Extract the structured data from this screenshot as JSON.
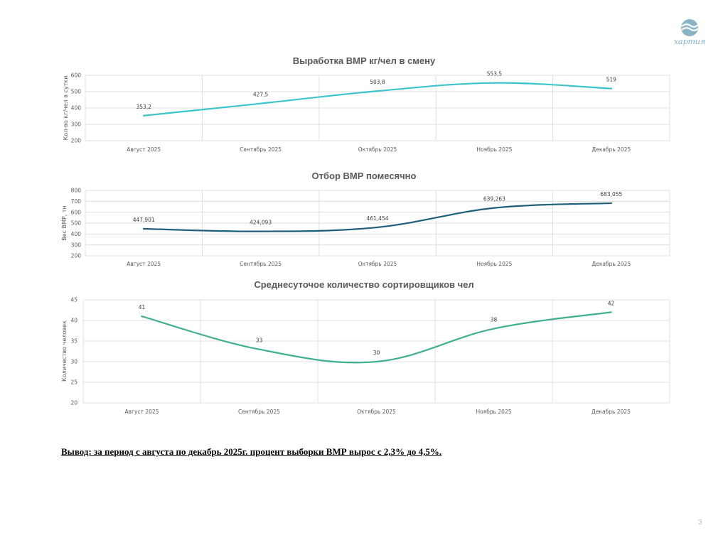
{
  "logo": {
    "name": "hartiya-logo",
    "text": "хартия",
    "color": "#8ab4c6"
  },
  "chart_data": [
    {
      "type": "line",
      "title": "Выработка ВМР кг/чел в смену",
      "ylabel": "Кол-во кг/чел в сутки",
      "xlabel": "",
      "categories": [
        "Август 2025",
        "Сентябрь 2025",
        "Октябрь 2025",
        "Ноябрь 2025",
        "Декабрь 2025"
      ],
      "series": [
        {
          "values": [
            353.2,
            427.5,
            503.8,
            553.5,
            519
          ],
          "labels": [
            "353,2",
            "427,5",
            "503,8",
            "553,5",
            "519"
          ],
          "color": "#3cc4cc"
        }
      ],
      "ylim": [
        200,
        600
      ],
      "yticks": [
        200,
        300,
        400,
        500,
        600
      ],
      "grid": true,
      "legend": "none"
    },
    {
      "type": "line",
      "title": "Отбор ВМР помесячно",
      "ylabel": "Вес ВМР, тн",
      "xlabel": "",
      "categories": [
        "Август 2025",
        "Сентябрь 2025",
        "Октябрь 2025",
        "Ноябрь 2025",
        "Декабрь 2025"
      ],
      "series": [
        {
          "values": [
            447.901,
            424.093,
            461.454,
            639.263,
            683.055
          ],
          "labels": [
            "447,901",
            "424,093",
            "461,454",
            "639,263",
            "683,055"
          ],
          "color": "#1d5f7a"
        }
      ],
      "ylim": [
        200,
        800
      ],
      "yticks": [
        200,
        300,
        400,
        500,
        600,
        700,
        800
      ],
      "grid": true,
      "legend": "none"
    },
    {
      "type": "line",
      "title": "Среднесуточое количество сортировщиков чел",
      "ylabel": "Количество человек",
      "xlabel": "",
      "categories": [
        "Август 2025",
        "Сентябрь 2025",
        "Октябрь 2025",
        "Ноябрь 2025",
        "Декабрь 2025"
      ],
      "series": [
        {
          "values": [
            41,
            33,
            30,
            38,
            42
          ],
          "labels": [
            "41",
            "33",
            "30",
            "38",
            "42"
          ],
          "color": "#40b08e"
        }
      ],
      "ylim": [
        20,
        45
      ],
      "yticks": [
        20,
        25,
        30,
        35,
        40,
        45
      ],
      "grid": true,
      "legend": "none"
    }
  ],
  "conclusion": "Вывод: за период с августа по декабрь 2025г. процент выборки ВМР вырос с 2,3% до 4,5%.",
  "page_number": "3"
}
